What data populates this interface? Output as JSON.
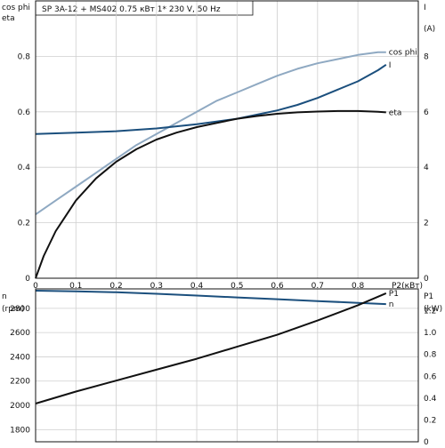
{
  "header": {
    "title": "SP 3A-12 + MS402    0.75 кВт    1* 230 V, 50 Hz"
  },
  "chart_data": [
    {
      "type": "line",
      "title": "SP 3A-12 + MS402    0.75 кВт    1* 230 V, 50 Hz",
      "xlabel": "P2(кВт)",
      "ylabel_left": [
        "cos phi",
        "eta"
      ],
      "ylabel_right": [
        "I",
        "(A)"
      ],
      "xlim": [
        0,
        0.95
      ],
      "ylim_left": [
        0,
        1.0
      ],
      "ylim_right": [
        0,
        10
      ],
      "x_ticks": [
        "0",
        "0.1",
        "0.2",
        "0.3",
        "0.4",
        "0.5",
        "0.6",
        "0.7",
        "0.8"
      ],
      "y_left_ticks": [
        "0",
        "0.2",
        "0.4",
        "0.6",
        "0.8"
      ],
      "y_right_ticks": [
        "0",
        "2",
        "4",
        "6",
        "8"
      ],
      "grid": true,
      "series": [
        {
          "name": "cos phi",
          "axis": "left",
          "color": "#8fa9c2",
          "x": [
            0,
            0.05,
            0.1,
            0.15,
            0.2,
            0.25,
            0.3,
            0.35,
            0.4,
            0.45,
            0.5,
            0.55,
            0.6,
            0.65,
            0.7,
            0.75,
            0.8,
            0.85,
            0.87
          ],
          "values": [
            0.23,
            0.28,
            0.33,
            0.38,
            0.43,
            0.48,
            0.52,
            0.56,
            0.6,
            0.64,
            0.67,
            0.7,
            0.73,
            0.755,
            0.775,
            0.79,
            0.805,
            0.815,
            0.815
          ]
        },
        {
          "name": "I",
          "axis": "right",
          "color": "#1b4f7d",
          "x": [
            0,
            0.1,
            0.2,
            0.3,
            0.4,
            0.5,
            0.6,
            0.65,
            0.7,
            0.75,
            0.8,
            0.85,
            0.87
          ],
          "values": [
            5.2,
            5.25,
            5.3,
            5.4,
            5.55,
            5.75,
            6.05,
            6.25,
            6.5,
            6.8,
            7.1,
            7.5,
            7.7
          ]
        },
        {
          "name": "eta",
          "axis": "left",
          "color": "#111111",
          "x": [
            0,
            0.02,
            0.05,
            0.1,
            0.15,
            0.2,
            0.25,
            0.3,
            0.35,
            0.4,
            0.45,
            0.5,
            0.55,
            0.6,
            0.65,
            0.7,
            0.75,
            0.8,
            0.85,
            0.87
          ],
          "values": [
            0,
            0.08,
            0.17,
            0.28,
            0.36,
            0.42,
            0.465,
            0.5,
            0.525,
            0.545,
            0.56,
            0.575,
            0.585,
            0.593,
            0.598,
            0.601,
            0.603,
            0.603,
            0.6,
            0.598
          ]
        }
      ]
    },
    {
      "type": "line",
      "xlabel": "",
      "ylabel_left": [
        "n",
        "(rpm)"
      ],
      "ylabel_right": [
        "P1",
        "(kW)"
      ],
      "xlim": [
        0,
        0.95
      ],
      "ylim_left": [
        1700,
        2960
      ],
      "ylim_right": [
        0,
        1.4
      ],
      "y_left_ticks": [
        "1800",
        "2000",
        "2200",
        "2400",
        "2600",
        "2800"
      ],
      "y_right_ticks": [
        "0",
        "0.2",
        "0.4",
        "0.6",
        "0.8",
        "1.0",
        "1.2"
      ],
      "grid": true,
      "series": [
        {
          "name": "n",
          "axis": "left",
          "color": "#1b4f7d",
          "x": [
            0,
            0.1,
            0.2,
            0.3,
            0.4,
            0.5,
            0.6,
            0.7,
            0.8,
            0.87
          ],
          "values": [
            2945,
            2940,
            2932,
            2920,
            2905,
            2890,
            2875,
            2860,
            2845,
            2835
          ]
        },
        {
          "name": "P1",
          "axis": "right",
          "color": "#111111",
          "x": [
            0,
            0.1,
            0.2,
            0.3,
            0.4,
            0.5,
            0.6,
            0.7,
            0.8,
            0.87
          ],
          "values": [
            0.35,
            0.46,
            0.56,
            0.66,
            0.76,
            0.87,
            0.98,
            1.11,
            1.25,
            1.36
          ]
        }
      ]
    }
  ]
}
